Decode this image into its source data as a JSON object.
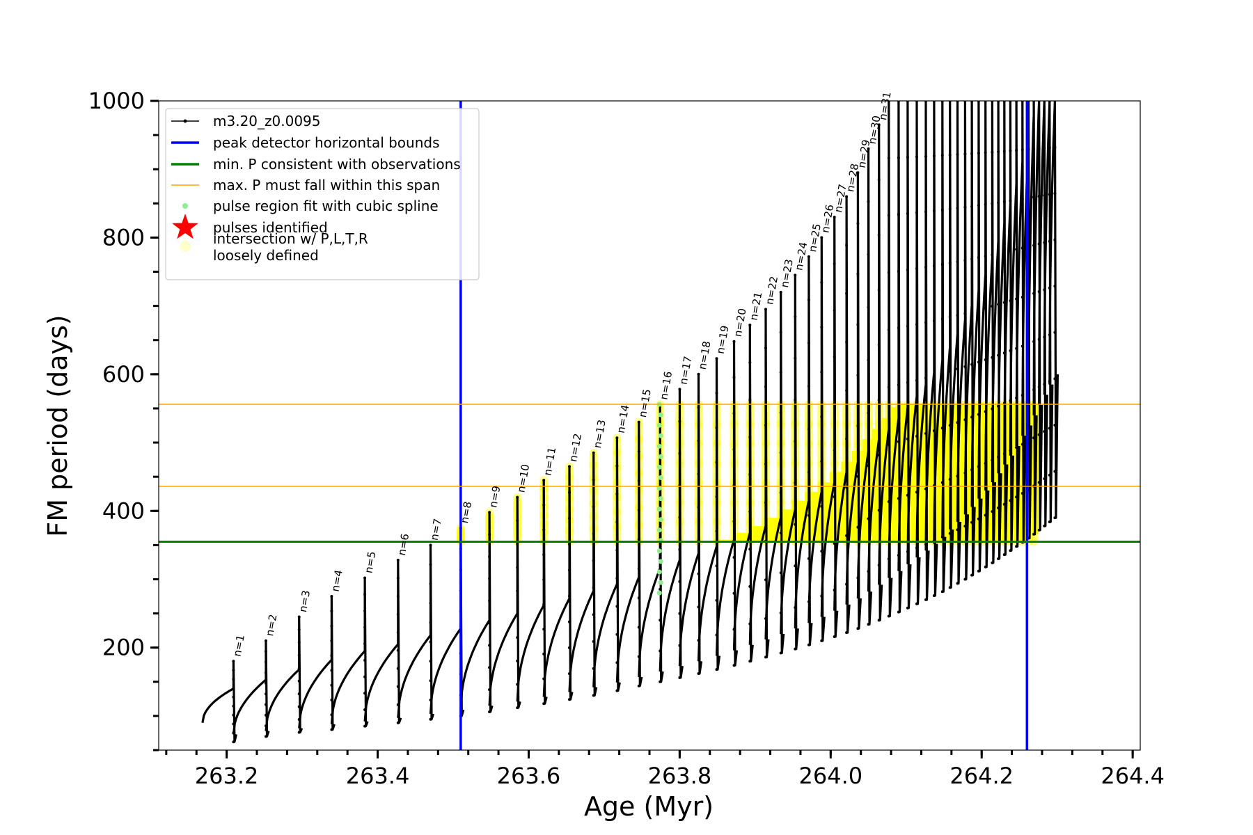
{
  "chart_data": {
    "type": "line",
    "title": "",
    "xlabel": "Age (Myr)",
    "ylabel": "FM period (days)",
    "xlim": [
      263.11,
      264.41
    ],
    "ylim": [
      50,
      1000
    ],
    "x_ticks": [
      263.2,
      263.4,
      263.6,
      263.8,
      264.0,
      264.2,
      264.4
    ],
    "x_tick_labels": [
      "263.2",
      "263.4",
      "263.6",
      "263.8",
      "264.0",
      "264.2",
      "264.4"
    ],
    "y_ticks": [
      200,
      400,
      600,
      800,
      1000
    ],
    "y_tick_labels": [
      "200",
      "400",
      "600",
      "800",
      "1000"
    ],
    "x_minor_step": 0.04,
    "y_minor_step": 50,
    "grid": false,
    "legend_position": "top-left",
    "legend": [
      {
        "label": "m3.20_z0.0095",
        "marker": "line-dot",
        "color": "#000000"
      },
      {
        "label": "peak detector horizontal bounds",
        "marker": "line",
        "color": "#0000ff"
      },
      {
        "label": "min. P consistent with observations",
        "marker": "line",
        "color": "#008000"
      },
      {
        "label": "max. P must fall within this span",
        "marker": "thin-line",
        "color": "#ffa500"
      },
      {
        "label": "pulse region fit with cubic spline",
        "marker": "dot",
        "color": "#90ee90"
      },
      {
        "label": "pulses identified",
        "marker": "star",
        "color": "#ff0000"
      },
      {
        "label": "intersection w/ P,L,T,R\nloosely defined",
        "marker": "circle",
        "color": "#ffffcc"
      }
    ],
    "vertical_lines": [
      {
        "x": 263.51,
        "color": "#0000ff"
      },
      {
        "x": 264.26,
        "color": "#0000ff"
      }
    ],
    "horizontal_lines": [
      {
        "y": 355,
        "color": "#008000",
        "width": 3
      },
      {
        "y": 436,
        "color": "#ffa500",
        "width": 1.5
      },
      {
        "y": 556,
        "color": "#ffa500",
        "width": 1.5
      }
    ],
    "series_color": "#000000",
    "highlight_color": "#ffff00",
    "spline_color": "#90ee90",
    "highlighted_pulse": 16,
    "pulses": [
      {
        "n": 1,
        "label": "n=1",
        "age": 263.209,
        "baseline": 140,
        "peak": 180,
        "trough": 62,
        "next": 73
      },
      {
        "n": 2,
        "label": "n=2",
        "age": 263.252,
        "baseline": 153,
        "peak": 210,
        "trough": 70,
        "next": 78
      },
      {
        "n": 3,
        "label": "n=3",
        "age": 263.296,
        "baseline": 168,
        "peak": 245,
        "trough": 76,
        "next": 82
      },
      {
        "n": 4,
        "label": "n=4",
        "age": 263.339,
        "baseline": 182,
        "peak": 275,
        "trough": 80,
        "next": 88
      },
      {
        "n": 5,
        "label": "n=5",
        "age": 263.383,
        "baseline": 195,
        "peak": 302,
        "trough": 85,
        "next": 92
      },
      {
        "n": 6,
        "label": "n=6",
        "age": 263.427,
        "baseline": 205,
        "peak": 328,
        "trough": 90,
        "next": 97
      },
      {
        "n": 7,
        "label": "n=7",
        "age": 263.47,
        "baseline": 218,
        "peak": 350,
        "trough": 95,
        "next": 103
      },
      {
        "n": 8,
        "label": "n=8",
        "age": 263.51,
        "baseline": 228,
        "peak": 375,
        "trough": 100,
        "next": 109
      },
      {
        "n": 9,
        "label": "n=9",
        "age": 263.548,
        "baseline": 240,
        "peak": 398,
        "trough": 106,
        "next": 115
      },
      {
        "n": 10,
        "label": "n=10",
        "age": 263.585,
        "baseline": 250,
        "peak": 420,
        "trough": 112,
        "next": 121
      },
      {
        "n": 11,
        "label": "n=11",
        "age": 263.62,
        "baseline": 262,
        "peak": 445,
        "trough": 118,
        "next": 128
      },
      {
        "n": 12,
        "label": "n=12",
        "age": 263.654,
        "baseline": 272,
        "peak": 465,
        "trough": 124,
        "next": 135
      },
      {
        "n": 13,
        "label": "n=13",
        "age": 263.686,
        "baseline": 283,
        "peak": 485,
        "trough": 130,
        "next": 142
      },
      {
        "n": 14,
        "label": "n=14",
        "age": 263.717,
        "baseline": 293,
        "peak": 507,
        "trough": 137,
        "next": 149
      },
      {
        "n": 15,
        "label": "n=15",
        "age": 263.746,
        "baseline": 303,
        "peak": 530,
        "trough": 144,
        "next": 157
      },
      {
        "n": 16,
        "label": "n=16",
        "age": 263.774,
        "baseline": 316,
        "peak": 556,
        "trough": 150,
        "next": 165
      },
      {
        "n": 17,
        "label": "n=17",
        "age": 263.8,
        "baseline": 328,
        "peak": 578,
        "trough": 156,
        "next": 173
      },
      {
        "n": 18,
        "label": "n=18",
        "age": 263.825,
        "baseline": 338,
        "peak": 600,
        "trough": 162,
        "next": 180
      },
      {
        "n": 19,
        "label": "n=19",
        "age": 263.849,
        "baseline": 348,
        "peak": 623,
        "trough": 168,
        "next": 188
      },
      {
        "n": 20,
        "label": "n=20",
        "age": 263.872,
        "baseline": 358,
        "peak": 648,
        "trough": 174,
        "next": 196
      },
      {
        "n": 21,
        "label": "n=21",
        "age": 263.893,
        "baseline": 368,
        "peak": 672,
        "trough": 180,
        "next": 204
      },
      {
        "n": 22,
        "label": "n=22",
        "age": 263.914,
        "baseline": 378,
        "peak": 695,
        "trough": 186,
        "next": 212
      },
      {
        "n": 23,
        "label": "n=23",
        "age": 263.934,
        "baseline": 390,
        "peak": 720,
        "trough": 192,
        "next": 220
      },
      {
        "n": 24,
        "label": "n=24",
        "age": 263.953,
        "baseline": 402,
        "peak": 745,
        "trough": 198,
        "next": 228
      },
      {
        "n": 25,
        "label": "n=25",
        "age": 263.971,
        "baseline": 415,
        "peak": 772,
        "trough": 204,
        "next": 236
      },
      {
        "n": 26,
        "label": "n=26",
        "age": 263.988,
        "baseline": 428,
        "peak": 800,
        "trough": 210,
        "next": 245
      },
      {
        "n": 27,
        "label": "n=27",
        "age": 264.005,
        "baseline": 442,
        "peak": 830,
        "trough": 216,
        "next": 254
      },
      {
        "n": 28,
        "label": "n=28",
        "age": 264.021,
        "baseline": 457,
        "peak": 860,
        "trough": 222,
        "next": 263
      },
      {
        "n": 29,
        "label": "n=29",
        "age": 264.036,
        "baseline": 472,
        "peak": 895,
        "trough": 228,
        "next": 272
      },
      {
        "n": 30,
        "label": "n=30",
        "age": 264.05,
        "baseline": 488,
        "peak": 930,
        "trough": 234,
        "next": 282
      },
      {
        "n": 31,
        "label": "n=31",
        "age": 264.064,
        "baseline": 505,
        "peak": 965,
        "trough": 240,
        "next": 292
      },
      {
        "n": 32,
        "label": "",
        "age": 264.077,
        "baseline": 520,
        "peak": 1000,
        "trough": 246,
        "next": 302
      },
      {
        "n": 33,
        "label": "",
        "age": 264.09,
        "baseline": 536,
        "peak": 1000,
        "trough": 252,
        "next": 312
      },
      {
        "n": 34,
        "label": "",
        "age": 264.102,
        "baseline": 552,
        "peak": 1000,
        "trough": 258,
        "next": 322
      },
      {
        "n": 35,
        "label": "",
        "age": 264.114,
        "baseline": 568,
        "peak": 1000,
        "trough": 264,
        "next": 332
      },
      {
        "n": 36,
        "label": "",
        "age": 264.126,
        "baseline": 585,
        "peak": 1000,
        "trough": 270,
        "next": 342
      },
      {
        "n": 37,
        "label": "",
        "age": 264.137,
        "baseline": 603,
        "peak": 1000,
        "trough": 276,
        "next": 352
      },
      {
        "n": 38,
        "label": "",
        "age": 264.148,
        "baseline": 621,
        "peak": 1000,
        "trough": 282,
        "next": 362
      },
      {
        "n": 39,
        "label": "",
        "age": 264.158,
        "baseline": 640,
        "peak": 1000,
        "trough": 288,
        "next": 373
      },
      {
        "n": 40,
        "label": "",
        "age": 264.168,
        "baseline": 660,
        "peak": 1000,
        "trough": 294,
        "next": 384
      },
      {
        "n": 41,
        "label": "",
        "age": 264.178,
        "baseline": 680,
        "peak": 1000,
        "trough": 300,
        "next": 395
      },
      {
        "n": 42,
        "label": "",
        "age": 264.187,
        "baseline": 701,
        "peak": 1000,
        "trough": 306,
        "next": 406
      },
      {
        "n": 43,
        "label": "",
        "age": 264.196,
        "baseline": 723,
        "peak": 1000,
        "trough": 312,
        "next": 418
      },
      {
        "n": 44,
        "label": "",
        "age": 264.205,
        "baseline": 746,
        "peak": 1000,
        "trough": 318,
        "next": 430
      },
      {
        "n": 45,
        "label": "",
        "age": 264.214,
        "baseline": 770,
        "peak": 1000,
        "trough": 324,
        "next": 442
      },
      {
        "n": 46,
        "label": "",
        "age": 264.222,
        "baseline": 795,
        "peak": 1000,
        "trough": 330,
        "next": 455
      },
      {
        "n": 47,
        "label": "",
        "age": 264.23,
        "baseline": 822,
        "peak": 1000,
        "trough": 336,
        "next": 468
      },
      {
        "n": 48,
        "label": "",
        "age": 264.238,
        "baseline": 850,
        "peak": 1000,
        "trough": 342,
        "next": 481
      },
      {
        "n": 49,
        "label": "",
        "age": 264.246,
        "baseline": 880,
        "peak": 1000,
        "trough": 348,
        "next": 495
      },
      {
        "n": 50,
        "label": "",
        "age": 264.254,
        "baseline": 912,
        "peak": 1000,
        "trough": 354,
        "next": 510
      },
      {
        "n": 51,
        "label": "",
        "age": 264.262,
        "baseline": 946,
        "peak": 1000,
        "trough": 360,
        "next": 525
      },
      {
        "n": 52,
        "label": "",
        "age": 264.269,
        "baseline": 980,
        "peak": 1000,
        "trough": 366,
        "next": 540
      },
      {
        "n": 53,
        "label": "",
        "age": 264.276,
        "baseline": 1000,
        "peak": 1000,
        "trough": 372,
        "next": 555
      },
      {
        "n": 54,
        "label": "",
        "age": 264.283,
        "baseline": 1000,
        "peak": 1000,
        "trough": 378,
        "next": 570
      },
      {
        "n": 55,
        "label": "",
        "age": 264.29,
        "baseline": 1000,
        "peak": 1000,
        "trough": 384,
        "next": 585
      },
      {
        "n": 56,
        "label": "",
        "age": 264.297,
        "baseline": 1000,
        "peak": 1000,
        "trough": 390,
        "next": 600
      }
    ],
    "start": {
      "age": 263.168,
      "period": 90
    }
  }
}
